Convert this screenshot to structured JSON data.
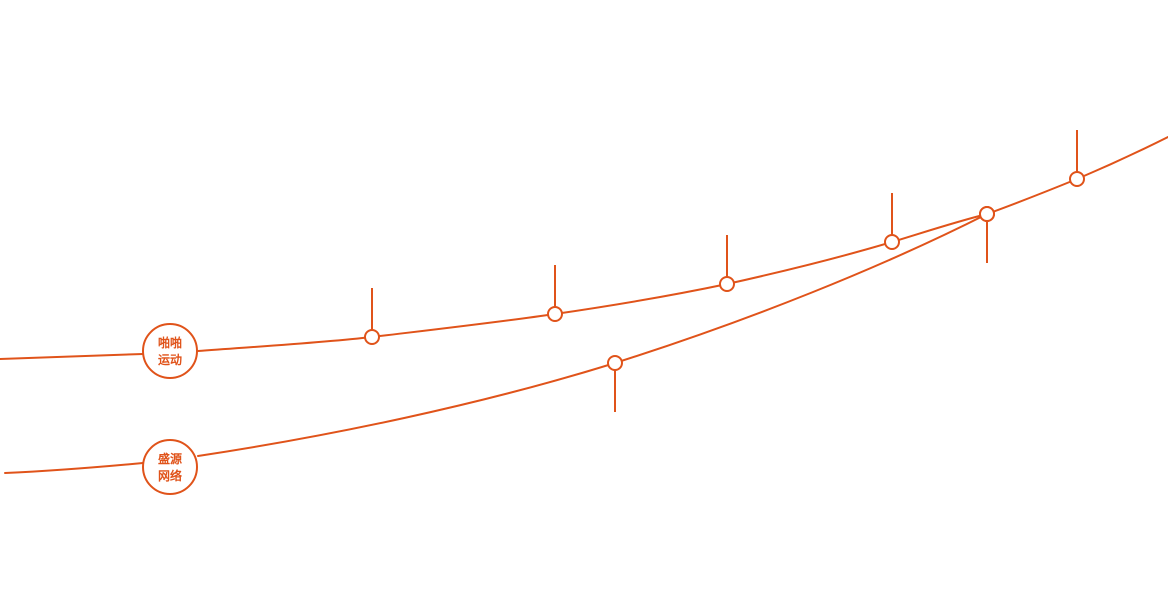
{
  "colors": {
    "accent": "#E0531A",
    "background": "#FFFFFF"
  },
  "tracks": [
    {
      "id": "upper",
      "badge": {
        "line1": "啪啪",
        "line2": "运动"
      },
      "milestones": 6
    },
    {
      "id": "lower",
      "badge": {
        "line1": "盛源",
        "line2": "网络"
      },
      "milestones": 1
    }
  ]
}
